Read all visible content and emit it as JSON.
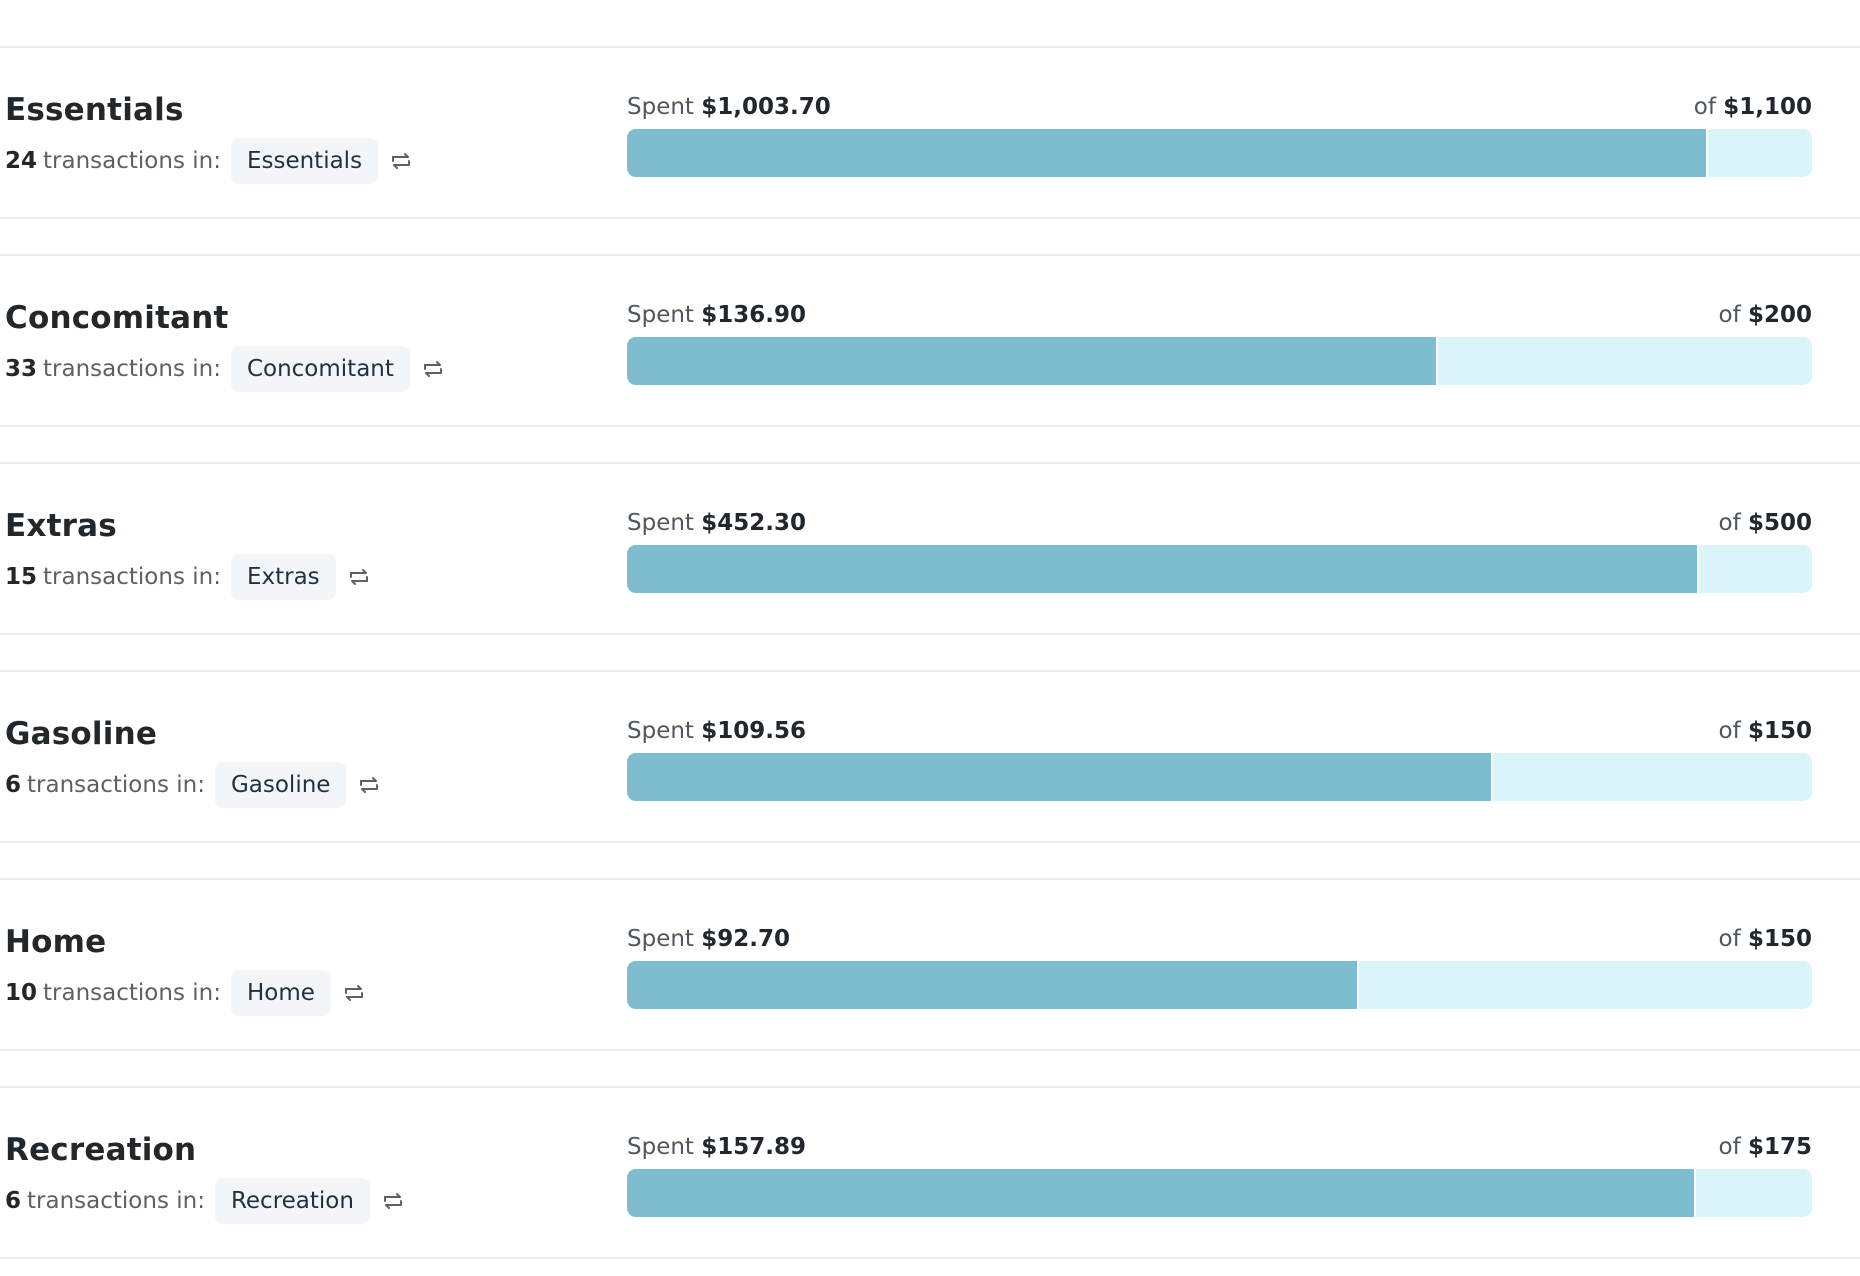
{
  "labels": {
    "transactions_in": "transactions in:",
    "spent_prefix": "Spent",
    "of_prefix": "of"
  },
  "colors": {
    "bar_fill": "#7dbdcf",
    "bar_track": "#dbf4fa",
    "tag_bg": "#f2f6f9",
    "divider": "#e9ecee"
  },
  "icons": {
    "reassign": "swap-arrows-icon"
  },
  "budgets": [
    {
      "name": "Essentials",
      "transactions": "24",
      "tag": "Essentials",
      "spent": "$1,003.70",
      "limit": "$1,100",
      "spent_value": 1003.7,
      "limit_value": 1100
    },
    {
      "name": "Concomitant",
      "transactions": "33",
      "tag": "Concomitant",
      "spent": "$136.90",
      "limit": "$200",
      "spent_value": 136.9,
      "limit_value": 200
    },
    {
      "name": "Extras",
      "transactions": "15",
      "tag": "Extras",
      "spent": "$452.30",
      "limit": "$500",
      "spent_value": 452.3,
      "limit_value": 500
    },
    {
      "name": "Gasoline",
      "transactions": "6",
      "tag": "Gasoline",
      "spent": "$109.56",
      "limit": "$150",
      "spent_value": 109.56,
      "limit_value": 150
    },
    {
      "name": "Home",
      "transactions": "10",
      "tag": "Home",
      "spent": "$92.70",
      "limit": "$150",
      "spent_value": 92.7,
      "limit_value": 150
    },
    {
      "name": "Recreation",
      "transactions": "6",
      "tag": "Recreation",
      "spent": "$157.89",
      "limit": "$175",
      "spent_value": 157.89,
      "limit_value": 175
    }
  ]
}
